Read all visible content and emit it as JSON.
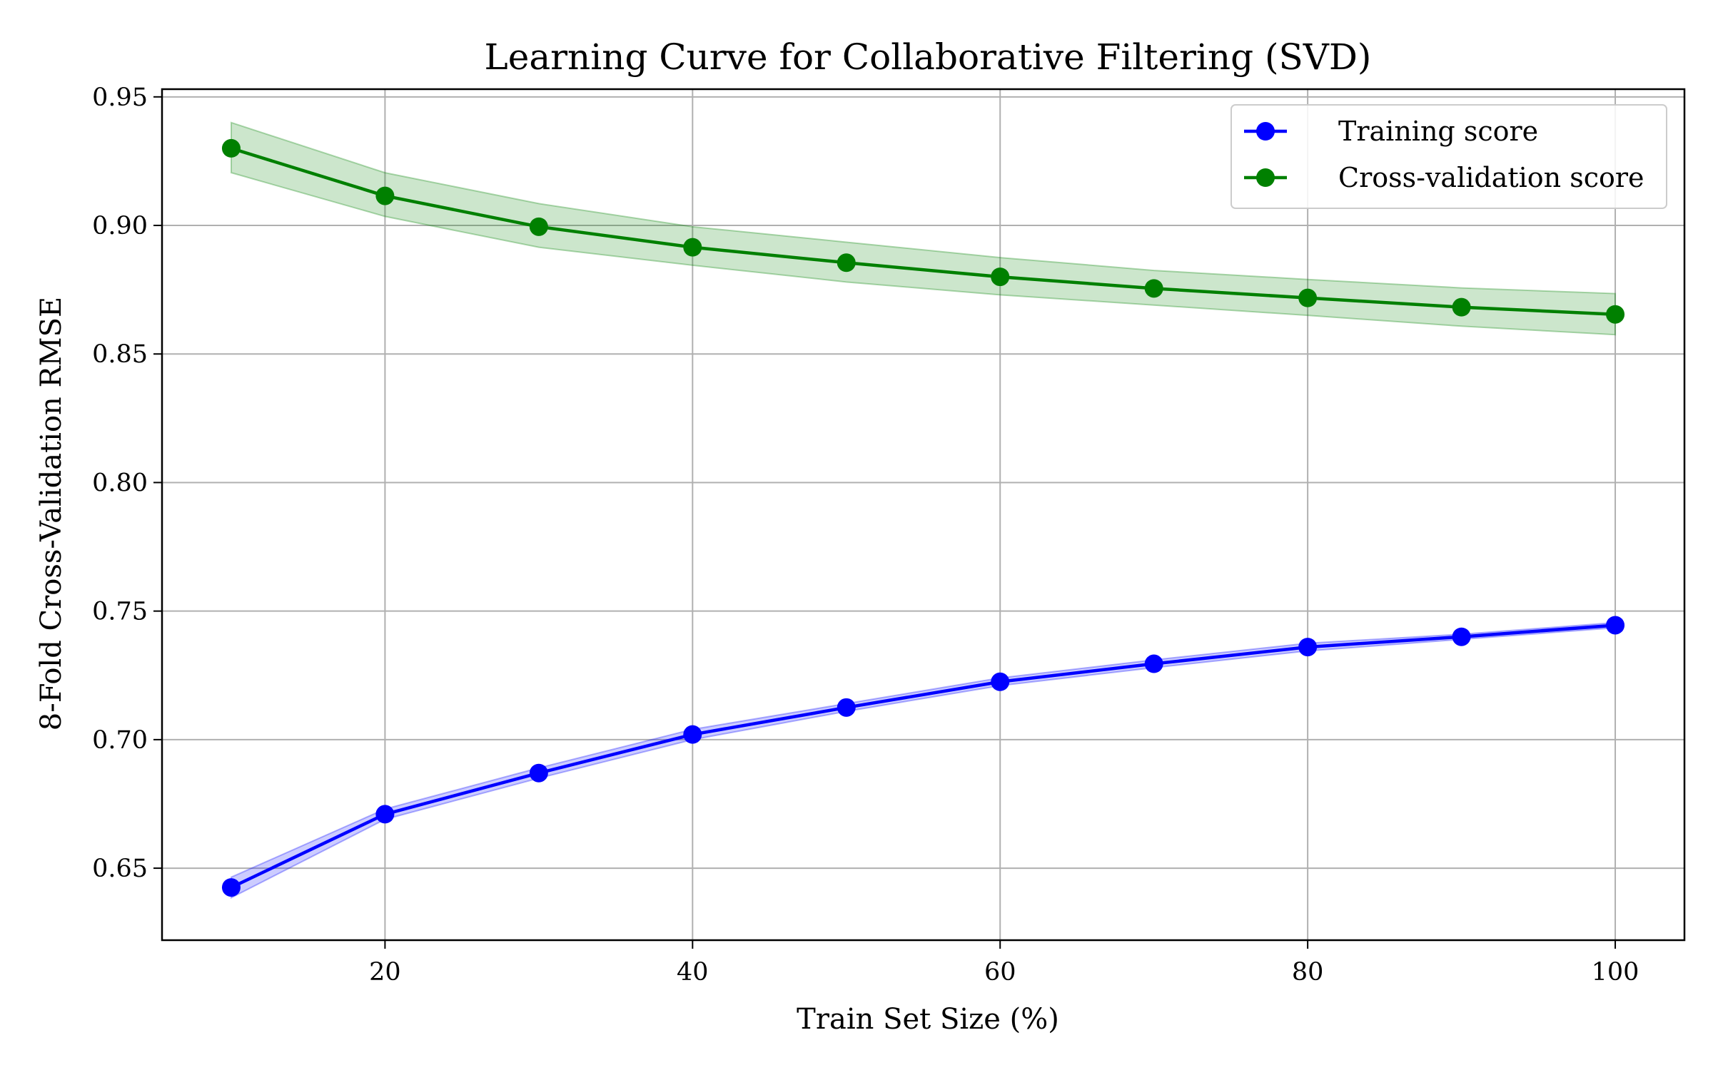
{
  "chart_data": {
    "type": "line",
    "title": "Learning Curve for Collaborative Filtering (SVD)",
    "xlabel": "Train Set Size (%)",
    "ylabel": "8-Fold Cross-Validation RMSE",
    "x": [
      10,
      20,
      30,
      40,
      50,
      60,
      70,
      80,
      90,
      100
    ],
    "xlim": [
      5.5,
      104.5
    ],
    "ylim": [
      0.622,
      0.953
    ],
    "xticks": [
      20,
      40,
      60,
      80,
      100
    ],
    "yticks": [
      0.65,
      0.7,
      0.75,
      0.8,
      0.85,
      0.9,
      0.95
    ],
    "xtick_labels": [
      "20",
      "40",
      "60",
      "80",
      "100"
    ],
    "ytick_labels": [
      "0.65",
      "0.70",
      "0.75",
      "0.80",
      "0.85",
      "0.90",
      "0.95"
    ],
    "grid": true,
    "legend_position": "top-right",
    "series": [
      {
        "name": "Training score",
        "color": "#0000ff",
        "marker": "circle",
        "values": [
          0.6425,
          0.671,
          0.687,
          0.702,
          0.7125,
          0.7225,
          0.7295,
          0.736,
          0.74,
          0.7445
        ],
        "band_lower": [
          0.6385,
          0.669,
          0.685,
          0.7,
          0.711,
          0.721,
          0.728,
          0.7345,
          0.739,
          0.7435
        ],
        "band_upper": [
          0.6465,
          0.673,
          0.689,
          0.704,
          0.714,
          0.724,
          0.731,
          0.7375,
          0.741,
          0.7455
        ]
      },
      {
        "name": "Cross-validation score",
        "color": "#008000",
        "marker": "circle",
        "values": [
          0.93,
          0.9115,
          0.8995,
          0.8915,
          0.8855,
          0.88,
          0.8755,
          0.8718,
          0.8682,
          0.8654
        ],
        "band_lower": [
          0.9205,
          0.9035,
          0.8915,
          0.8845,
          0.878,
          0.873,
          0.869,
          0.865,
          0.8608,
          0.8575
        ],
        "band_upper": [
          0.94,
          0.9205,
          0.9085,
          0.8995,
          0.8935,
          0.8875,
          0.8825,
          0.879,
          0.8757,
          0.8735
        ]
      }
    ]
  }
}
